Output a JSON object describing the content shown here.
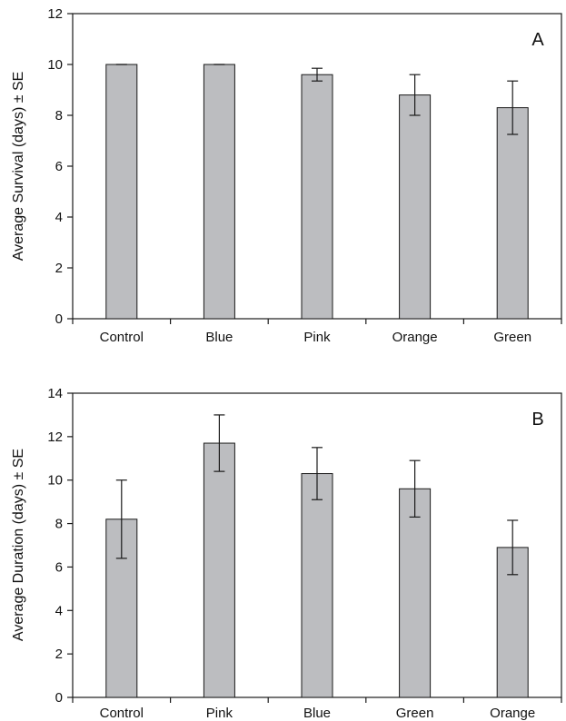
{
  "chart_data": [
    {
      "type": "bar",
      "panel_label": "A",
      "ylabel": "Average Survival (days) ± SE",
      "xlabel": "",
      "ylim": [
        0,
        12
      ],
      "yticks": [
        0,
        2,
        4,
        6,
        8,
        10,
        12
      ],
      "categories": [
        "Control",
        "Blue",
        "Pink",
        "Orange",
        "Green"
      ],
      "values": [
        10.0,
        10.0,
        9.6,
        8.8,
        8.3
      ],
      "error": [
        0.0,
        0.0,
        0.25,
        0.8,
        1.05
      ],
      "grid": false,
      "bar_color": "#bcbdc0"
    },
    {
      "type": "bar",
      "panel_label": "B",
      "ylabel": "Average Duration (days) ± SE",
      "xlabel": "",
      "ylim": [
        0,
        14
      ],
      "yticks": [
        0,
        2,
        4,
        6,
        8,
        10,
        12,
        14
      ],
      "categories": [
        "Control",
        "Pink",
        "Blue",
        "Green",
        "Orange"
      ],
      "values": [
        8.2,
        11.7,
        10.3,
        9.6,
        6.9
      ],
      "error": [
        1.8,
        1.3,
        1.2,
        1.3,
        1.25
      ],
      "grid": false,
      "bar_color": "#bcbdc0"
    }
  ]
}
